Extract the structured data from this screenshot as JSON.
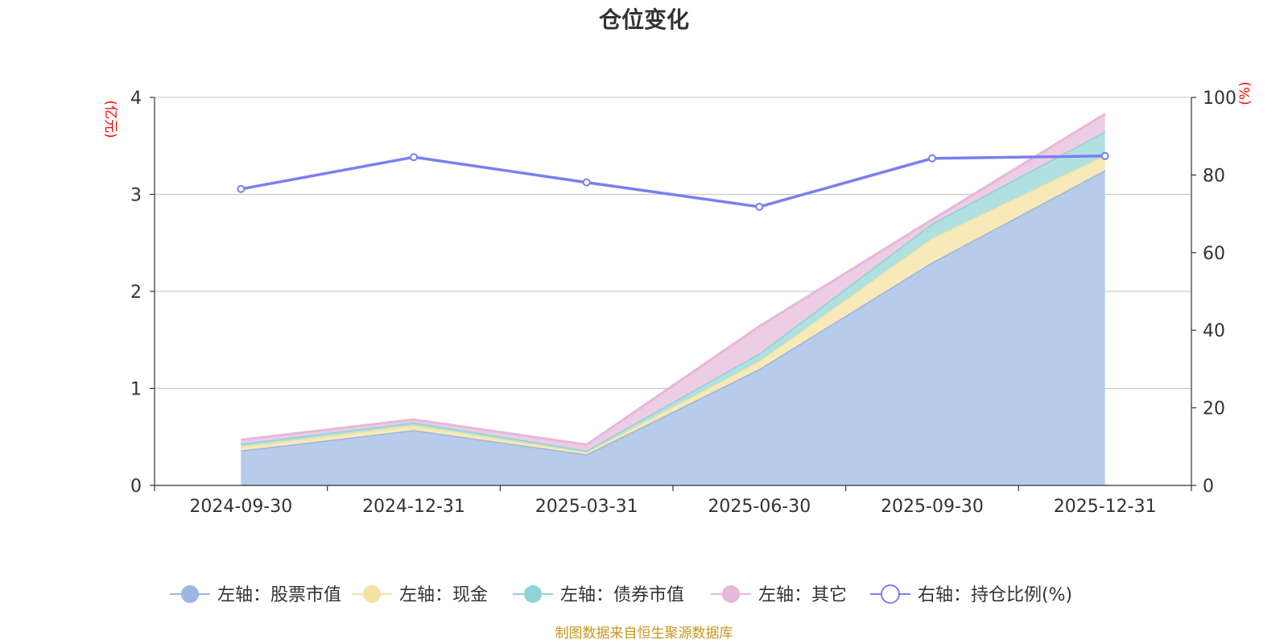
{
  "chart_data": {
    "type": "area",
    "title": "仓位变化",
    "categories": [
      "2024-09-30",
      "2024-12-31",
      "2025-03-31",
      "2025-06-30",
      "2025-09-30",
      "2025-12-31"
    ],
    "left_axis": {
      "unit": "(亿元)",
      "ylim": [
        0,
        4
      ],
      "ticks": [
        "0",
        "1",
        "2",
        "3",
        "4"
      ]
    },
    "right_axis": {
      "unit": "(%)",
      "ylim": [
        0,
        100
      ],
      "ticks": [
        "0",
        "20",
        "40",
        "60",
        "80",
        "100"
      ]
    },
    "stacked_series": [
      {
        "name": "左轴：股票市值",
        "color": "#9db5e0",
        "fill": "#b7cbea",
        "values": [
          0.36,
          0.57,
          0.32,
          1.2,
          2.3,
          3.25
        ]
      },
      {
        "name": "左轴：现金",
        "color": "#f5e2a0",
        "fill": "#f8e9b8",
        "values": [
          0.04,
          0.05,
          0.02,
          0.08,
          0.25,
          0.15
        ]
      },
      {
        "name": "左轴：债券市值",
        "color": "#8fd3d6",
        "fill": "#b0e0e0",
        "values": [
          0.03,
          0.03,
          0.02,
          0.08,
          0.15,
          0.25
        ]
      },
      {
        "name": "左轴：其它",
        "color": "#e6b8db",
        "fill": "#eccde4",
        "values": [
          0.04,
          0.03,
          0.06,
          0.28,
          0.04,
          0.18
        ]
      }
    ],
    "line_series": {
      "name": "右轴：持仓比例(%)",
      "color": "#7b7ff0",
      "values": [
        76.4,
        84.6,
        78.1,
        71.8,
        84.3,
        84.9
      ]
    },
    "source": "制图数据来自恒生聚源数据库"
  }
}
